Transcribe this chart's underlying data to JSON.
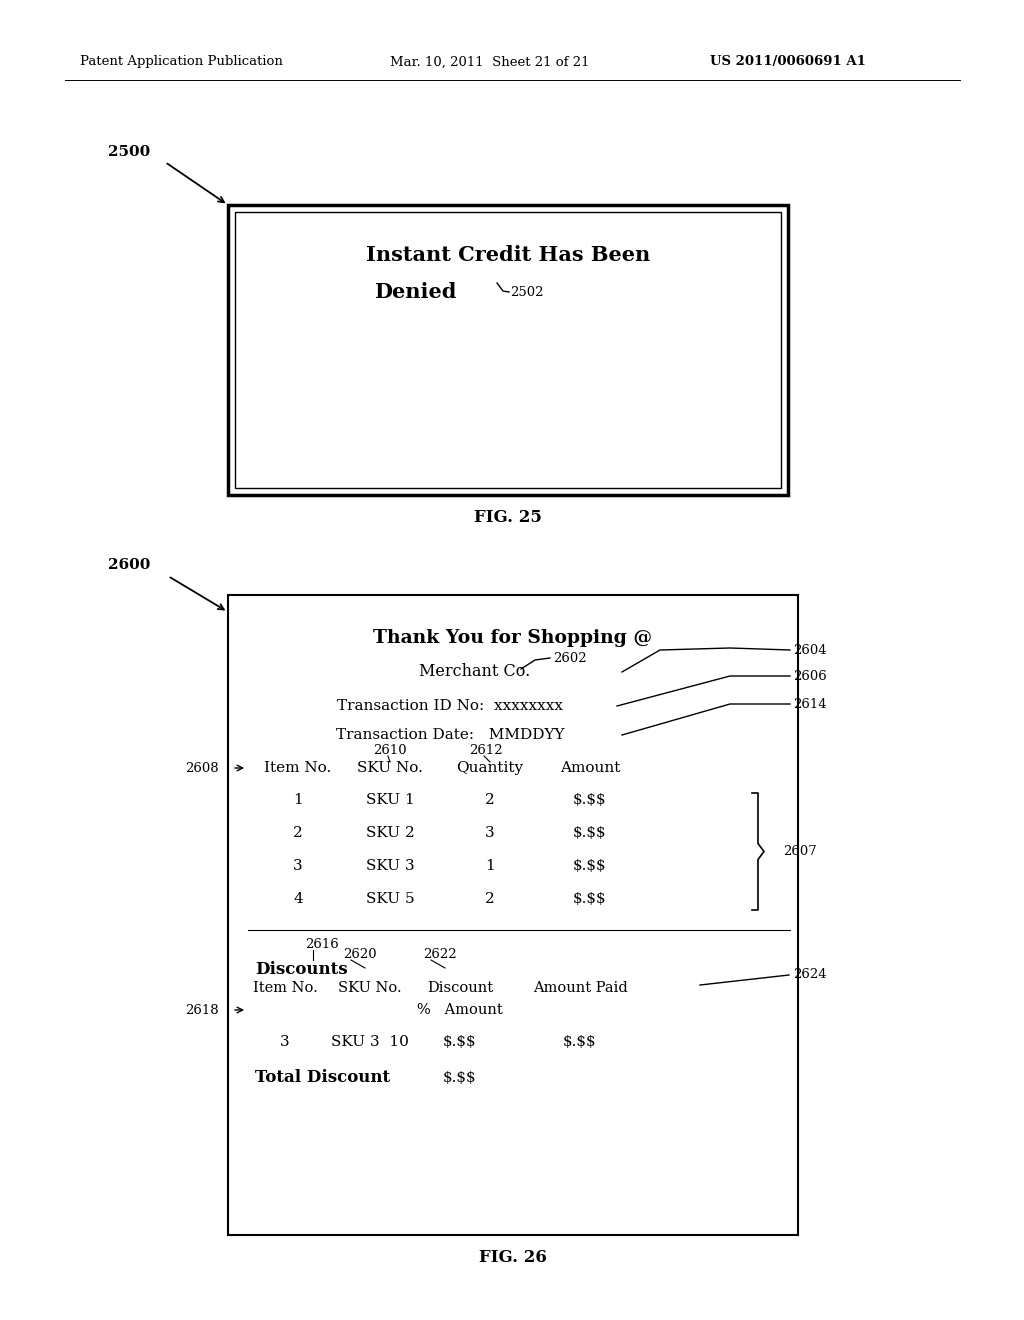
{
  "background_color": "#ffffff",
  "header_left": "Patent Application Publication",
  "header_mid": "Mar. 10, 2011  Sheet 21 of 21",
  "header_right": "US 2011/0060691 A1",
  "fig25_label": "FIG. 25",
  "fig26_label": "FIG. 26",
  "fig25_ref": "2500",
  "fig25_box_text_line1": "Instant Credit Has Been",
  "fig25_box_text_line2": "Denied",
  "fig25_inner_ref": "2502",
  "fig26_ref": "2600",
  "fig26_box_title": "Thank You for Shopping @",
  "fig26_merchant": "Merchant Co.",
  "fig26_merchant_ref": "2602",
  "fig26_txn_id": "Transaction ID No:  xxxxxxxx",
  "fig26_txn_date": "Transaction Date:   MMDDYY",
  "fig26_ref_2604": "2604",
  "fig26_ref_2606": "2606",
  "fig26_ref_2614": "2614",
  "fig26_ref_2608": "2608",
  "fig26_ref_2610": "2610",
  "fig26_ref_2612": "2612",
  "fig26_ref_2607": "2607",
  "fig26_ref_2616": "2616",
  "fig26_ref_2618": "2618",
  "fig26_ref_2620": "2620",
  "fig26_ref_2622": "2622",
  "fig26_ref_2624": "2624",
  "table_headers": [
    "Item No.",
    "SKU No.",
    "Quantity",
    "Amount"
  ],
  "table_rows": [
    [
      "1",
      "SKU 1",
      "2",
      "$.$$"
    ],
    [
      "2",
      "SKU 2",
      "3",
      "$.$$"
    ],
    [
      "3",
      "SKU 3",
      "1",
      "$.$$"
    ],
    [
      "4",
      "SKU 5",
      "2",
      "$.$$"
    ]
  ],
  "total_discount_label": "Total Discount",
  "total_discount_value": "$.$$"
}
